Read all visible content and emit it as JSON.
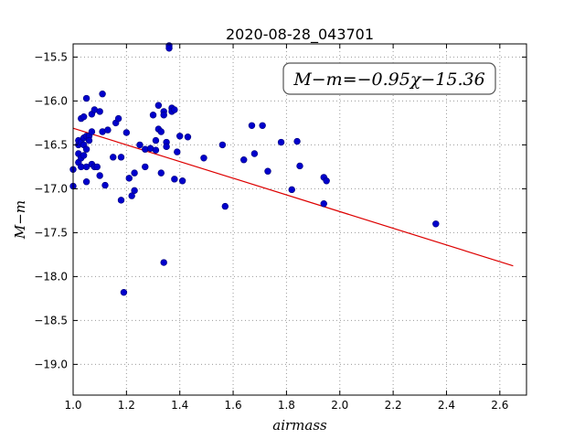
{
  "chart_data": {
    "type": "scatter",
    "title": "2020-08-28_043701",
    "xlabel": "airmass",
    "ylabel": "M−m",
    "annotation": "M−m=−0.95χ−15.36",
    "xlim": [
      1.0,
      2.7
    ],
    "ylim": [
      -19.35,
      -15.35
    ],
    "x_ticks": [
      1.0,
      1.2,
      1.4,
      1.6,
      1.8,
      2.0,
      2.2,
      2.4,
      2.6
    ],
    "x_tick_labels": [
      "1.0",
      "1.2",
      "1.4",
      "1.6",
      "1.8",
      "2.0",
      "2.2",
      "2.4",
      "2.6"
    ],
    "y_ticks": [
      -15.5,
      -16.0,
      -16.5,
      -17.0,
      -17.5,
      -18.0,
      -18.5,
      -19.0
    ],
    "y_tick_labels": [
      "−15.5",
      "−16.0",
      "−16.5",
      "−17.0",
      "−17.5",
      "−18.0",
      "−18.5",
      "−19.0"
    ],
    "grid": true,
    "fit_line": {
      "slope": -0.95,
      "intercept": -15.36,
      "x_range": [
        1.0,
        2.65
      ],
      "color": "#dd0000"
    },
    "point_color": "#0000cc",
    "points": [
      [
        1.0,
        -16.78
      ],
      [
        1.0,
        -16.97
      ],
      [
        1.02,
        -16.5
      ],
      [
        1.02,
        -16.6
      ],
      [
        1.02,
        -16.7
      ],
      [
        1.02,
        -16.45
      ],
      [
        1.03,
        -16.2
      ],
      [
        1.03,
        -16.47
      ],
      [
        1.03,
        -16.65
      ],
      [
        1.03,
        -16.75
      ],
      [
        1.04,
        -16.18
      ],
      [
        1.04,
        -16.42
      ],
      [
        1.04,
        -16.5
      ],
      [
        1.04,
        -16.62
      ],
      [
        1.05,
        -15.97
      ],
      [
        1.05,
        -16.4
      ],
      [
        1.05,
        -16.55
      ],
      [
        1.05,
        -16.75
      ],
      [
        1.05,
        -16.92
      ],
      [
        1.06,
        -16.4
      ],
      [
        1.06,
        -16.45
      ],
      [
        1.07,
        -16.15
      ],
      [
        1.07,
        -16.35
      ],
      [
        1.07,
        -16.72
      ],
      [
        1.08,
        -16.1
      ],
      [
        1.08,
        -16.75
      ],
      [
        1.09,
        -16.75
      ],
      [
        1.1,
        -16.12
      ],
      [
        1.1,
        -16.85
      ],
      [
        1.11,
        -15.92
      ],
      [
        1.11,
        -16.35
      ],
      [
        1.12,
        -16.96
      ],
      [
        1.13,
        -16.33
      ],
      [
        1.15,
        -16.64
      ],
      [
        1.16,
        -16.25
      ],
      [
        1.17,
        -16.2
      ],
      [
        1.18,
        -16.64
      ],
      [
        1.18,
        -17.13
      ],
      [
        1.19,
        -18.18
      ],
      [
        1.2,
        -16.36
      ],
      [
        1.21,
        -16.88
      ],
      [
        1.22,
        -17.08
      ],
      [
        1.23,
        -17.02
      ],
      [
        1.23,
        -16.82
      ],
      [
        1.25,
        -16.5
      ],
      [
        1.27,
        -16.55
      ],
      [
        1.27,
        -16.75
      ],
      [
        1.29,
        -16.54
      ],
      [
        1.3,
        -16.16
      ],
      [
        1.31,
        -16.45
      ],
      [
        1.31,
        -16.56
      ],
      [
        1.32,
        -16.05
      ],
      [
        1.32,
        -16.32
      ],
      [
        1.33,
        -16.35
      ],
      [
        1.33,
        -16.82
      ],
      [
        1.34,
        -16.12
      ],
      [
        1.34,
        -16.16
      ],
      [
        1.34,
        -17.84
      ],
      [
        1.35,
        -16.47
      ],
      [
        1.35,
        -16.52
      ],
      [
        1.36,
        -15.37
      ],
      [
        1.36,
        -15.4
      ],
      [
        1.37,
        -16.08
      ],
      [
        1.37,
        -16.12
      ],
      [
        1.38,
        -16.1
      ],
      [
        1.38,
        -16.89
      ],
      [
        1.39,
        -16.58
      ],
      [
        1.4,
        -16.4
      ],
      [
        1.41,
        -16.91
      ],
      [
        1.43,
        -16.41
      ],
      [
        1.49,
        -16.65
      ],
      [
        1.56,
        -16.5
      ],
      [
        1.57,
        -17.2
      ],
      [
        1.64,
        -16.67
      ],
      [
        1.67,
        -16.28
      ],
      [
        1.68,
        -16.6
      ],
      [
        1.71,
        -16.28
      ],
      [
        1.73,
        -16.8
      ],
      [
        1.78,
        -16.47
      ],
      [
        1.82,
        -17.01
      ],
      [
        1.84,
        -16.46
      ],
      [
        1.85,
        -16.74
      ],
      [
        1.94,
        -16.87
      ],
      [
        1.94,
        -17.17
      ],
      [
        1.95,
        -16.91
      ],
      [
        2.36,
        -17.4
      ]
    ]
  }
}
